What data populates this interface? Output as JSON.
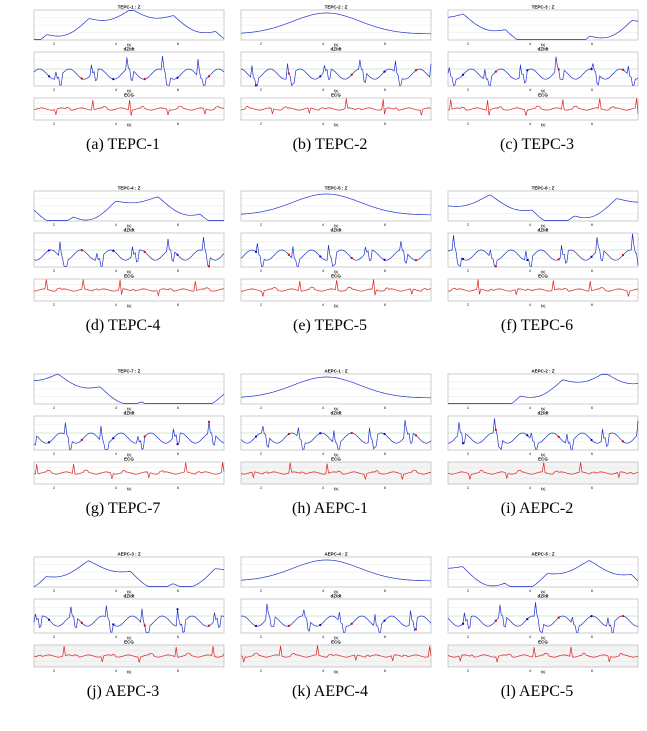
{
  "chart_data": [
    {
      "id": "a",
      "caption": "(a) TEPC-1",
      "type": "line",
      "panels": [
        {
          "title": "TEPC-1 : Z",
          "color": "#2233cc"
        },
        {
          "title": "dZ/dt",
          "color": "#2233cc"
        },
        {
          "title": "ECG",
          "color": "#dd2222"
        }
      ],
      "xlabel": "t[s]",
      "xticks": [
        "2",
        "4",
        "6"
      ]
    },
    {
      "id": "b",
      "caption": "(b) TEPC-2",
      "type": "line",
      "panels": [
        {
          "title": "TEPC-2 : Z",
          "color": "#2233cc"
        },
        {
          "title": "dZ/dt",
          "color": "#2233cc"
        },
        {
          "title": "ECG",
          "color": "#dd2222"
        }
      ],
      "xlabel": "t[s]",
      "xticks": [
        "2",
        "4",
        "6"
      ]
    },
    {
      "id": "c",
      "caption": "(c) TEPC-3",
      "type": "line",
      "panels": [
        {
          "title": "TEPC-3 : Z",
          "color": "#2233cc"
        },
        {
          "title": "dZ/dt",
          "color": "#2233cc"
        },
        {
          "title": "ECG",
          "color": "#dd2222"
        }
      ],
      "xlabel": "t[s]",
      "xticks": [
        "2",
        "4",
        "6"
      ]
    },
    {
      "id": "d",
      "caption": "(d) TEPC-4",
      "type": "line",
      "panels": [
        {
          "title": "TEPC-4 : Z",
          "color": "#2233cc"
        },
        {
          "title": "dZ/dt",
          "color": "#2233cc"
        },
        {
          "title": "ECG",
          "color": "#dd2222"
        }
      ],
      "xlabel": "t[s]",
      "xticks": [
        "2",
        "4",
        "6"
      ]
    },
    {
      "id": "e",
      "caption": "(e) TEPC-5",
      "type": "line",
      "panels": [
        {
          "title": "TEPC-5 : Z",
          "color": "#2233cc"
        },
        {
          "title": "dZ/dt",
          "color": "#2233cc"
        },
        {
          "title": "ECG",
          "color": "#dd2222"
        }
      ],
      "xlabel": "t[s]",
      "xticks": [
        "2",
        "4",
        "6"
      ]
    },
    {
      "id": "f",
      "caption": "(f) TEPC-6",
      "type": "line",
      "panels": [
        {
          "title": "TEPC-6 : Z",
          "color": "#2233cc"
        },
        {
          "title": "dZ/dt",
          "color": "#2233cc"
        },
        {
          "title": "ECG",
          "color": "#dd2222"
        }
      ],
      "xlabel": "t[s]",
      "xticks": [
        "2",
        "4",
        "6"
      ]
    },
    {
      "id": "g",
      "caption": "(g) TEPC-7",
      "type": "line",
      "panels": [
        {
          "title": "TEPC-7 : Z",
          "color": "#2233cc"
        },
        {
          "title": "dZ/dt",
          "color": "#2233cc"
        },
        {
          "title": "ECG",
          "color": "#dd2222"
        }
      ],
      "xlabel": "t[s]",
      "xticks": [
        "2",
        "4",
        "6"
      ]
    },
    {
      "id": "h",
      "caption": "(h) AEPC-1",
      "type": "line",
      "panels": [
        {
          "title": "AEPC-1 : Z",
          "color": "#2233cc"
        },
        {
          "title": "dZ/dt",
          "color": "#2233cc"
        },
        {
          "title": "ECG",
          "color": "#dd2222"
        }
      ],
      "xlabel": "t[s]",
      "xticks": [
        "2",
        "4",
        "6"
      ]
    },
    {
      "id": "i",
      "caption": "(i) AEPC-2",
      "type": "line",
      "panels": [
        {
          "title": "AEPC-2 : Z",
          "color": "#2233cc"
        },
        {
          "title": "dZ/dt",
          "color": "#2233cc"
        },
        {
          "title": "ECG",
          "color": "#dd2222"
        }
      ],
      "xlabel": "t[s]",
      "xticks": [
        "2",
        "4",
        "6"
      ]
    },
    {
      "id": "j",
      "caption": "(j) AEPC-3",
      "type": "line",
      "panels": [
        {
          "title": "AEPC-3 : Z",
          "color": "#2233cc"
        },
        {
          "title": "dZ/dt",
          "color": "#2233cc"
        },
        {
          "title": "ECG",
          "color": "#dd2222"
        }
      ],
      "xlabel": "t[s]",
      "xticks": [
        "2",
        "4",
        "6"
      ]
    },
    {
      "id": "k",
      "caption": "(k) AEPC-4",
      "type": "line",
      "panels": [
        {
          "title": "AEPC-4 : Z",
          "color": "#2233cc"
        },
        {
          "title": "dZ/dt",
          "color": "#2233cc"
        },
        {
          "title": "ECG",
          "color": "#dd2222"
        }
      ],
      "xlabel": "t[s]",
      "xticks": [
        "2",
        "4",
        "6"
      ]
    },
    {
      "id": "l",
      "caption": "(l) AEPC-5",
      "type": "line",
      "panels": [
        {
          "title": "AEPC-5 : Z",
          "color": "#2233cc"
        },
        {
          "title": "dZ/dt",
          "color": "#2233cc"
        },
        {
          "title": "ECG",
          "color": "#dd2222"
        }
      ],
      "xlabel": "t[s]",
      "xticks": [
        "2",
        "4",
        "6"
      ]
    }
  ]
}
